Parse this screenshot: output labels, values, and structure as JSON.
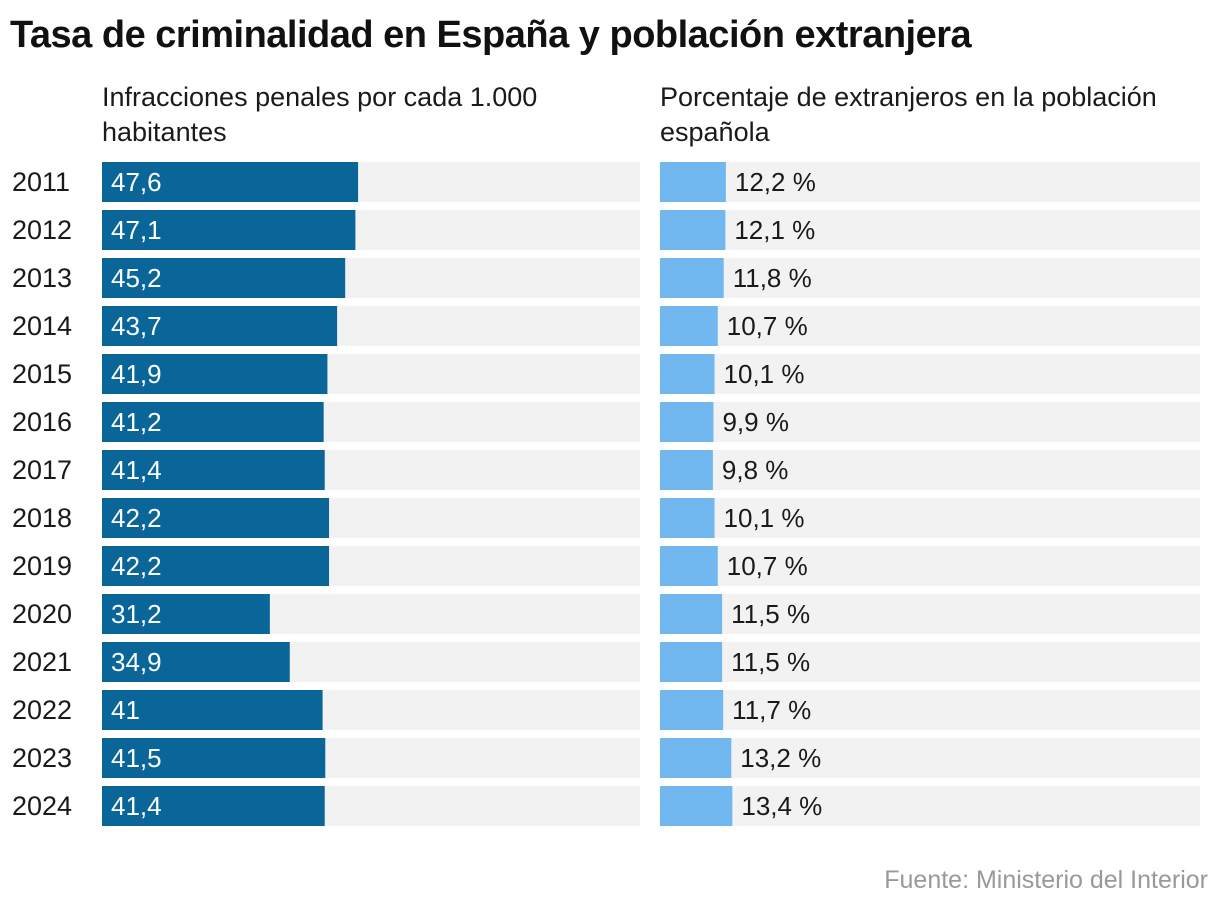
{
  "title": "Tasa de criminalidad en España y población extranjera",
  "source": "Fuente: Ministerio del Interior",
  "chart_data": [
    {
      "type": "bar",
      "orientation": "horizontal",
      "title": "Infracciones penales por cada 1.000 habitantes",
      "categories": [
        "2011",
        "2012",
        "2013",
        "2014",
        "2015",
        "2016",
        "2017",
        "2018",
        "2019",
        "2020",
        "2021",
        "2022",
        "2023",
        "2024"
      ],
      "values": [
        47.6,
        47.1,
        45.2,
        43.7,
        41.9,
        41.2,
        41.4,
        42.2,
        42.2,
        31.2,
        34.9,
        41,
        41.5,
        41.4
      ],
      "labels": [
        "47,6",
        "47,1",
        "45,2",
        "43,7",
        "41,9",
        "41,2",
        "41,4",
        "42,2",
        "42,2",
        "31,2",
        "34,9",
        "41",
        "41,5",
        "41,4"
      ],
      "xlim": [
        0,
        100
      ],
      "bar_color": "#0a6699",
      "track_color": "#f2f2f2",
      "label_color": "#ffffff",
      "label_position": "inside-start"
    },
    {
      "type": "bar",
      "orientation": "horizontal",
      "title": "Porcentaje de extranjeros en la población española",
      "categories": [
        "2011",
        "2012",
        "2013",
        "2014",
        "2015",
        "2016",
        "2017",
        "2018",
        "2019",
        "2020",
        "2021",
        "2022",
        "2023",
        "2024"
      ],
      "values": [
        12.2,
        12.1,
        11.8,
        10.7,
        10.1,
        9.9,
        9.8,
        10.1,
        10.7,
        11.5,
        11.5,
        11.7,
        13.2,
        13.4
      ],
      "labels": [
        "12,2 %",
        "12,1 %",
        "11,8 %",
        "10,7 %",
        "10,1 %",
        "9,9 %",
        "9,8 %",
        "10,1 %",
        "10,7 %",
        "11,5 %",
        "11,5 %",
        "11,7 %",
        "13,2 %",
        "13,4 %"
      ],
      "xlim": [
        0,
        100
      ],
      "bar_color": "#72b8f0",
      "track_color": "#f2f2f2",
      "label_color": "#1a1a1a",
      "label_position": "outside-end"
    }
  ]
}
